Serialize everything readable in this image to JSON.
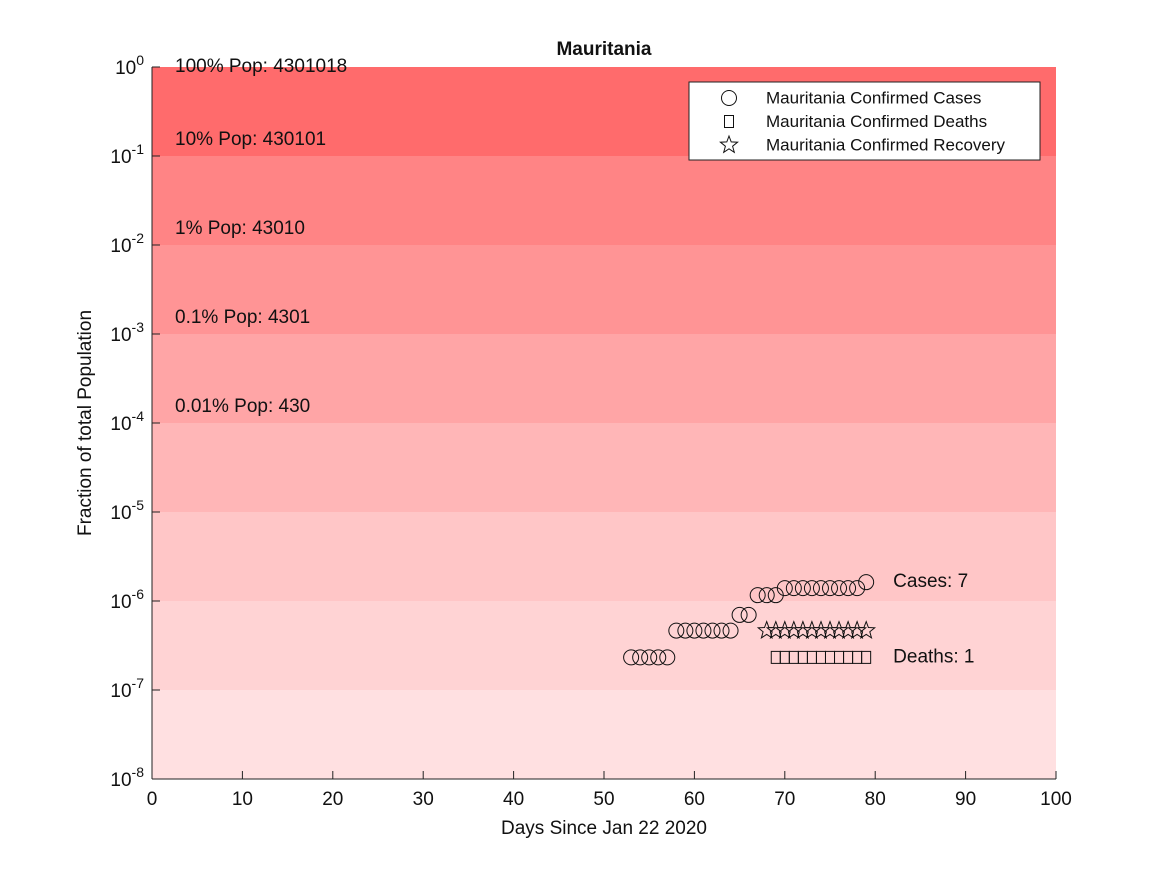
{
  "chart_data": {
    "type": "scatter",
    "title": "Mauritania",
    "xlabel": "Days Since Jan 22 2020",
    "ylabel": "Fraction of total Population",
    "ylog": true,
    "xlim": [
      0,
      100
    ],
    "xticks": [
      0,
      10,
      20,
      30,
      40,
      50,
      60,
      70,
      80,
      90,
      100
    ],
    "ylim": [
      1e-08,
      1
    ],
    "yticks": [
      {
        "value": 1e-08,
        "label": "10^-8"
      },
      {
        "value": 1e-07,
        "label": "10^-7"
      },
      {
        "value": 1e-06,
        "label": "10^-6"
      },
      {
        "value": 1e-05,
        "label": "10^-5"
      },
      {
        "value": 0.0001,
        "label": "10^-4"
      },
      {
        "value": 0.001,
        "label": "10^-3"
      },
      {
        "value": 0.01,
        "label": "10^-2"
      },
      {
        "value": 0.1,
        "label": "10^-1"
      },
      {
        "value": 1,
        "label": "10^0"
      }
    ],
    "band_labels": [
      "100% Pop: 4301018",
      "10% Pop: 430101",
      "1% Pop: 43010",
      "0.1% Pop: 4301",
      "0.01% Pop: 430"
    ],
    "end_labels": [
      "Cases: 7",
      "Deaths: 1"
    ],
    "legend_position": "upper right",
    "series": [
      {
        "name": "Mauritania Confirmed Cases",
        "marker": "circle",
        "color": "#111111",
        "x": [
          53,
          54,
          55,
          56,
          57,
          58,
          59,
          60,
          61,
          62,
          63,
          64,
          65,
          66,
          67,
          68,
          69,
          70,
          71,
          72,
          73,
          74,
          75,
          76,
          77,
          78,
          79
        ],
        "values": [
          2.325e-07,
          2.325e-07,
          2.325e-07,
          2.325e-07,
          2.325e-07,
          4.65e-07,
          4.65e-07,
          4.65e-07,
          4.65e-07,
          4.65e-07,
          4.65e-07,
          4.65e-07,
          6.975e-07,
          6.975e-07,
          1.1625e-06,
          1.1625e-06,
          1.1625e-06,
          1.395e-06,
          1.395e-06,
          1.395e-06,
          1.395e-06,
          1.395e-06,
          1.395e-06,
          1.395e-06,
          1.395e-06,
          1.395e-06,
          1.6275e-06
        ]
      },
      {
        "name": "Mauritania Confirmed Deaths",
        "marker": "square",
        "color": "#111111",
        "x": [
          69,
          70,
          71,
          72,
          73,
          74,
          75,
          76,
          77,
          78,
          79
        ],
        "values": [
          2.325e-07,
          2.325e-07,
          2.325e-07,
          2.325e-07,
          2.325e-07,
          2.325e-07,
          2.325e-07,
          2.325e-07,
          2.325e-07,
          2.325e-07,
          2.325e-07
        ]
      },
      {
        "name": "Mauritania Confirmed Recovery",
        "marker": "star",
        "color": "#111111",
        "x": [
          68,
          69,
          70,
          71,
          72,
          73,
          74,
          75,
          76,
          77,
          78,
          79
        ],
        "values": [
          4.65e-07,
          4.65e-07,
          4.65e-07,
          4.65e-07,
          4.65e-07,
          4.65e-07,
          4.65e-07,
          4.65e-07,
          4.65e-07,
          4.65e-07,
          4.65e-07,
          4.65e-07
        ]
      }
    ]
  }
}
